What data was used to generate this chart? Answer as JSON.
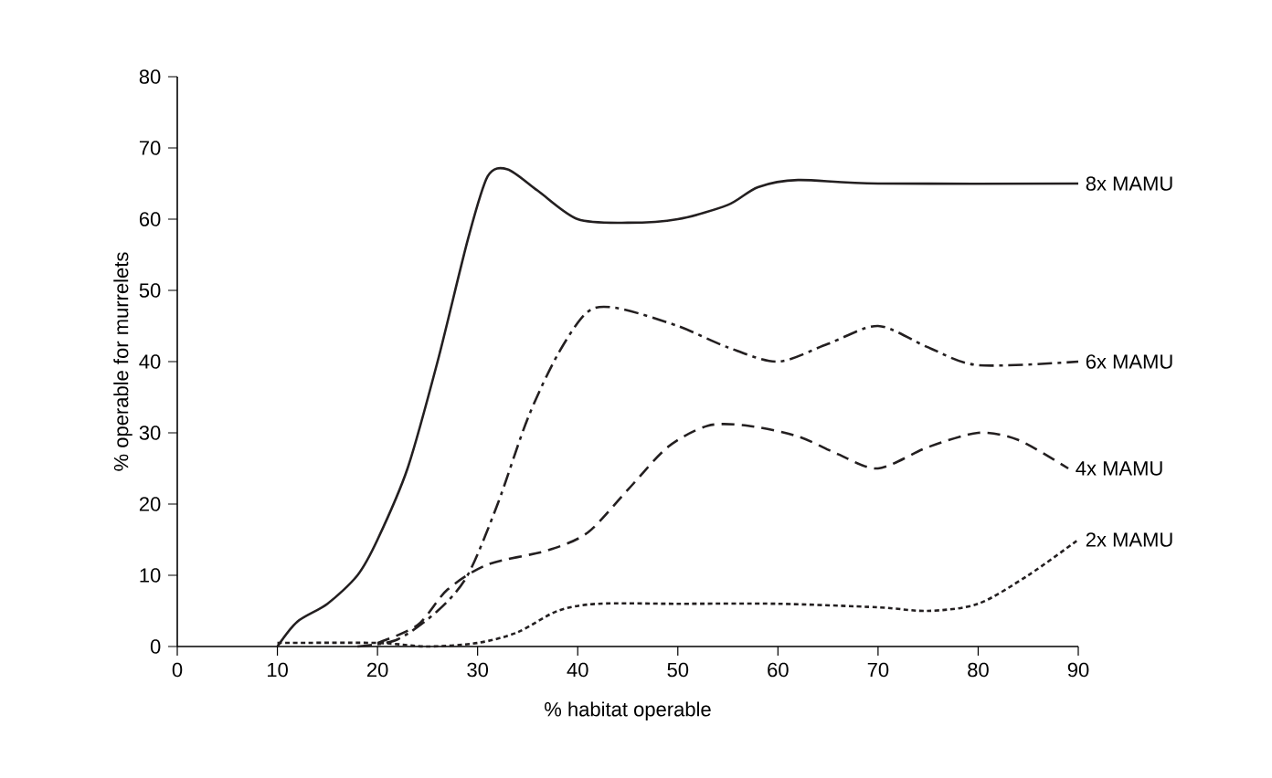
{
  "chart_data": {
    "type": "line",
    "xlabel": "% habitat operable",
    "ylabel": "% operable for murrelets",
    "xlim": [
      0,
      90
    ],
    "ylim": [
      0,
      80
    ],
    "xticks": [
      0,
      10,
      20,
      30,
      40,
      50,
      60,
      70,
      80,
      90
    ],
    "yticks": [
      0,
      10,
      20,
      30,
      40,
      50,
      60,
      70,
      80
    ],
    "grid": false,
    "marker": "none",
    "series": [
      {
        "name": "8x MAMU",
        "color": "#231f20",
        "line_style": "solid",
        "x": [
          10,
          12,
          15,
          18,
          20,
          23,
          26,
          29,
          31,
          33,
          36,
          40,
          45,
          50,
          55,
          58,
          62,
          70,
          90
        ],
        "values": [
          0,
          3.5,
          6,
          10,
          15,
          25,
          40,
          57,
          66,
          67,
          64,
          60,
          59.5,
          60,
          62,
          64.5,
          65.5,
          65,
          65
        ]
      },
      {
        "name": "6x MAMU",
        "color": "#231f20",
        "line_style": "dashdot",
        "x": [
          18,
          22,
          26,
          29,
          32,
          35,
          38,
          41,
          44,
          50,
          55,
          60,
          65,
          70,
          75,
          80,
          90
        ],
        "values": [
          0,
          1,
          5,
          10,
          20,
          32,
          41,
          47,
          47.5,
          45,
          42,
          40,
          42.5,
          45,
          42,
          39.5,
          40
        ]
      },
      {
        "name": "4x MAMU",
        "color": "#231f20",
        "line_style": "dashed",
        "x": [
          20,
          24,
          27,
          31,
          37,
          41,
          45,
          49,
          53,
          57,
          62,
          66,
          70,
          75,
          80,
          84,
          89
        ],
        "values": [
          0.5,
          3,
          8,
          11.5,
          13.5,
          16,
          22,
          28,
          31,
          31,
          29.5,
          27,
          25,
          28,
          30,
          29,
          25
        ]
      },
      {
        "name": "2x MAMU",
        "color": "#231f20",
        "line_style": "dotted",
        "x": [
          10,
          20,
          25,
          30,
          34,
          38,
          42,
          50,
          60,
          70,
          75,
          80,
          85,
          90
        ],
        "values": [
          0.5,
          0.5,
          0,
          0.5,
          2,
          5,
          6,
          6,
          6,
          5.5,
          5,
          6,
          10,
          15
        ]
      }
    ]
  }
}
